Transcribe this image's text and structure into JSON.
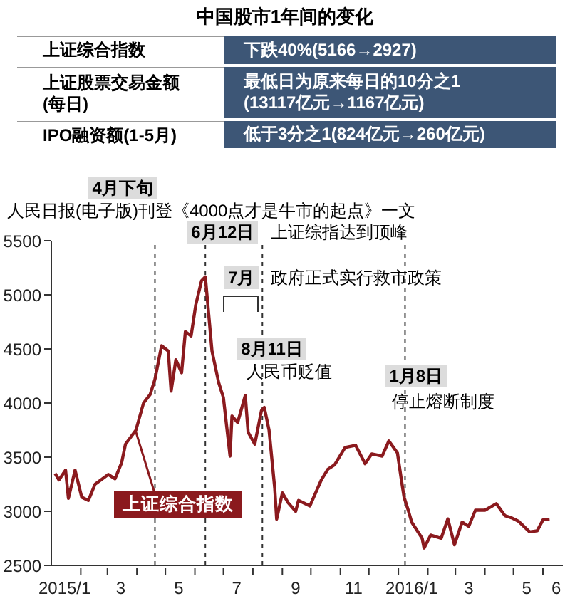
{
  "chart_data": {
    "type": "line",
    "title": "中国股市1年间的变化",
    "x": [
      "2015-01-05",
      "2015-01-09",
      "2015-01-16",
      "2015-01-19",
      "2015-01-26",
      "2015-02-02",
      "2015-02-09",
      "2015-02-16",
      "2015-03-02",
      "2015-03-09",
      "2015-03-16",
      "2015-03-20",
      "2015-03-31",
      "2015-04-08",
      "2015-04-15",
      "2015-04-20",
      "2015-04-27",
      "2015-05-04",
      "2015-05-07",
      "2015-05-12",
      "2015-05-18",
      "2015-05-22",
      "2015-05-28",
      "2015-06-02",
      "2015-06-05",
      "2015-06-08",
      "2015-06-12",
      "2015-06-19",
      "2015-06-26",
      "2015-07-01",
      "2015-07-08",
      "2015-07-10",
      "2015-07-16",
      "2015-07-24",
      "2015-07-27",
      "2015-08-03",
      "2015-08-10",
      "2015-08-13",
      "2015-08-18",
      "2015-08-24",
      "2015-08-26",
      "2015-09-01",
      "2015-09-07",
      "2015-09-15",
      "2015-09-18",
      "2015-09-30",
      "2015-10-12",
      "2015-10-19",
      "2015-10-26",
      "2015-11-06",
      "2015-11-17",
      "2015-11-27",
      "2015-12-04",
      "2015-12-15",
      "2015-12-22",
      "2015-12-31",
      "2016-01-04",
      "2016-01-07",
      "2016-01-11",
      "2016-01-15",
      "2016-01-26",
      "2016-01-28",
      "2016-02-04",
      "2016-02-15",
      "2016-02-22",
      "2016-02-29",
      "2016-03-08",
      "2016-03-15",
      "2016-03-22",
      "2016-04-01",
      "2016-04-13",
      "2016-04-22",
      "2016-04-29",
      "2016-05-06",
      "2016-05-18",
      "2016-05-26",
      "2016-06-01",
      "2016-06-08"
    ],
    "series": [
      {
        "name": "上证综合指数",
        "color": "#8b1a1e",
        "values": [
          3350,
          3290,
          3380,
          3120,
          3380,
          3130,
          3100,
          3250,
          3340,
          3300,
          3450,
          3620,
          3750,
          4000,
          4080,
          4220,
          4530,
          4480,
          4110,
          4400,
          4280,
          4660,
          4620,
          4910,
          5020,
          5130,
          5166,
          4480,
          4190,
          4050,
          3510,
          3880,
          3820,
          4070,
          3730,
          3620,
          3930,
          3960,
          3750,
          3210,
          2927,
          3170,
          3080,
          3000,
          3100,
          3050,
          3290,
          3390,
          3430,
          3590,
          3610,
          3440,
          3530,
          3510,
          3650,
          3540,
          3300,
          3130,
          3020,
          2900,
          2750,
          2660,
          2780,
          2750,
          2930,
          2690,
          2900,
          2860,
          3010,
          3010,
          3070,
          2960,
          2940,
          2910,
          2810,
          2820,
          2920,
          2927
        ]
      }
    ],
    "xlim": [
      "2015-01-01",
      "2016-06-22"
    ],
    "xticks": [
      {
        "value": "2015-01-15",
        "label": "2015/1"
      },
      {
        "value": "2015-03-15",
        "label": "3"
      },
      {
        "value": "2015-05-15",
        "label": "5"
      },
      {
        "value": "2015-07-15",
        "label": "7"
      },
      {
        "value": "2015-09-15",
        "label": "9"
      },
      {
        "value": "2015-11-15",
        "label": "11"
      },
      {
        "value": "2016-01-15",
        "label": "2016/1"
      },
      {
        "value": "2016-03-15",
        "label": "3"
      },
      {
        "value": "2016-05-15",
        "label": "5"
      },
      {
        "value": "2016-06-15",
        "label": "6"
      },
      {
        "value": "2015-02-01",
        "label": null
      },
      {
        "value": "2015-03-01",
        "label": null
      },
      {
        "value": "2015-04-01",
        "label": null
      },
      {
        "value": "2015-05-01",
        "label": null
      },
      {
        "value": "2015-06-01",
        "label": null
      },
      {
        "value": "2015-07-01",
        "label": null
      },
      {
        "value": "2015-08-01",
        "label": null
      },
      {
        "value": "2015-09-01",
        "label": null
      },
      {
        "value": "2015-10-01",
        "label": null
      },
      {
        "value": "2015-11-01",
        "label": null
      },
      {
        "value": "2015-12-01",
        "label": null
      },
      {
        "value": "2016-01-01",
        "label": null
      },
      {
        "value": "2016-02-01",
        "label": null
      },
      {
        "value": "2016-03-01",
        "label": null
      },
      {
        "value": "2016-04-01",
        "label": null
      },
      {
        "value": "2016-05-01",
        "label": null
      },
      {
        "value": "2016-06-01",
        "label": null
      }
    ],
    "ylim": [
      2500,
      5500
    ],
    "yticks": [
      2500,
      3000,
      3500,
      4000,
      4500,
      5000,
      5500
    ],
    "marker": "none",
    "line_style": "solid",
    "ref_lines": [
      {
        "axis": "x",
        "value": "2015-04-20",
        "label": "4月下旬",
        "line_style": "dashed",
        "color": "#333333"
      },
      {
        "axis": "x",
        "value": "2015-06-12",
        "label": "6月12日",
        "line_style": "dashed",
        "color": "#333333"
      },
      {
        "axis": "x",
        "value": "2015-08-11",
        "label": "8月11日",
        "line_style": "dashed",
        "color": "#333333"
      },
      {
        "axis": "x",
        "value": "2016-01-08",
        "label": "1月8日",
        "line_style": "dashed",
        "color": "#333333"
      }
    ],
    "annotations": [
      "人民日报(电子版)刊登《4000点才是牛市的起点》一文",
      "上证综指达到顶峰",
      "人民币贬值",
      "停止熔断制度",
      "7月",
      "政府正式实行救市政策",
      "上证综合指数",
      "下跌40%(5166→2927)",
      "上证股票交易金额\n(每日)",
      "最低日为原来每日的10分之1\n(13117亿元→1167亿元)",
      "IPO融资额(1-5月)",
      "低于3分之1(824亿元→260亿元)"
    ]
  }
}
